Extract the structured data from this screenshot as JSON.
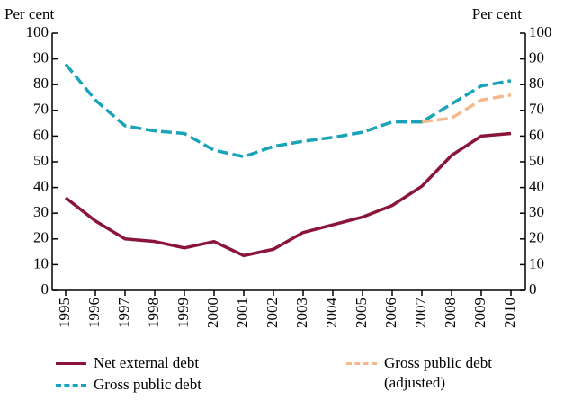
{
  "chart_data": {
    "type": "line",
    "y_label": "Per cent",
    "y2_label": "Per cent",
    "categories": [
      "1995",
      "1996",
      "1997",
      "1998",
      "1999",
      "2000",
      "2001",
      "2002",
      "2003",
      "2004",
      "2005",
      "2006",
      "2007",
      "2008",
      "2009",
      "2010"
    ],
    "series": [
      {
        "name": "Net external debt",
        "color": "#8b1538",
        "dash": false,
        "values": [
          36,
          27,
          20,
          19,
          16.5,
          19,
          13.5,
          16,
          22.5,
          25.5,
          28.5,
          33,
          40.5,
          52.5,
          60,
          61
        ]
      },
      {
        "name": "Gross public debt (adjusted)",
        "color": "#f5b88a",
        "dash": true,
        "values": [
          null,
          null,
          null,
          null,
          null,
          null,
          null,
          null,
          null,
          null,
          null,
          null,
          65.5,
          67,
          74,
          76
        ]
      },
      {
        "name": "Gross public debt",
        "color": "#19a3b9",
        "dash": true,
        "values": [
          88,
          74,
          64,
          62,
          61,
          54.5,
          52,
          56,
          58,
          59.5,
          61.5,
          65.5,
          65.5,
          72.5,
          79.5,
          81.5
        ]
      }
    ],
    "ylim": [
      0,
      100
    ],
    "yticks": [
      0,
      10,
      20,
      30,
      40,
      50,
      60,
      70,
      80,
      90,
      100
    ],
    "y2lim": [
      0,
      100
    ],
    "y2ticks": [
      0,
      10,
      20,
      30,
      40,
      50,
      60,
      70,
      80,
      90,
      100
    ],
    "grid": false
  }
}
